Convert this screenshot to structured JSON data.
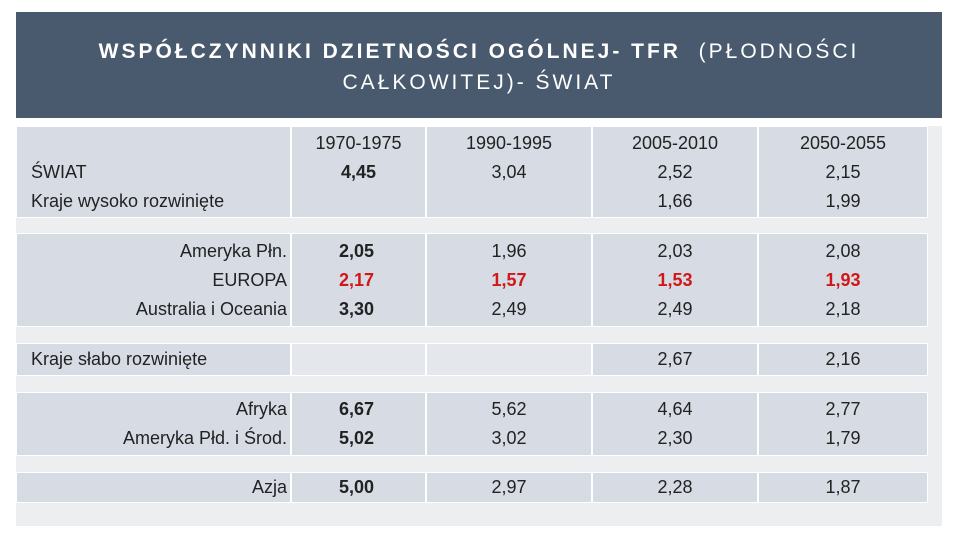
{
  "title": {
    "bold": "WSPÓŁCZYNNIKI DZIETNOŚCI OGÓLNEJ- TFR",
    "light_1": "(PŁODNOŚCI",
    "light_2": "CAŁKOWITEJ)- ŚWIAT"
  },
  "table": {
    "headers": [
      "1970-1975",
      "1990-1995",
      "2005-2010",
      "2050-2055"
    ],
    "group1": {
      "labels": [
        "ŚWIAT",
        "Kraje wysoko rozwinięte"
      ],
      "values": [
        [
          "4,45",
          ""
        ],
        [
          "3,04",
          ""
        ],
        [
          "2,52",
          "1,66"
        ],
        [
          "2,15",
          "1,99"
        ]
      ]
    },
    "group2": {
      "labels": [
        "Ameryka Płn.",
        "EUROPA",
        "Australia i Oceania"
      ],
      "values": [
        [
          "2,05",
          "2,17",
          "3,30"
        ],
        [
          "1,96",
          "1,57",
          "2,49"
        ],
        [
          "2,03",
          "1,53",
          "2,49"
        ],
        [
          "2,08",
          "1,93",
          "2,18"
        ]
      ]
    },
    "group3": {
      "labels": [
        "Kraje słabo rozwinięte"
      ],
      "values": [
        [
          ""
        ],
        [
          ""
        ],
        [
          "2,67"
        ],
        [
          "2,16"
        ]
      ]
    },
    "group4": {
      "labels": [
        "Afryka",
        "Ameryka Płd. i Środ."
      ],
      "values": [
        [
          "6,67",
          "5,02"
        ],
        [
          "5,62",
          "3,02"
        ],
        [
          "4,64",
          "2,30"
        ],
        [
          "2,77",
          "1,79"
        ]
      ]
    },
    "group5": {
      "labels": [
        "Azja"
      ],
      "values": [
        [
          "5,00"
        ],
        [
          "2,97"
        ],
        [
          "2,28"
        ],
        [
          "1,87"
        ]
      ]
    }
  },
  "colors": {
    "title_bg": "#4a5a6e",
    "cell_bg": "#d7dce4",
    "highlight": "#d01818"
  }
}
